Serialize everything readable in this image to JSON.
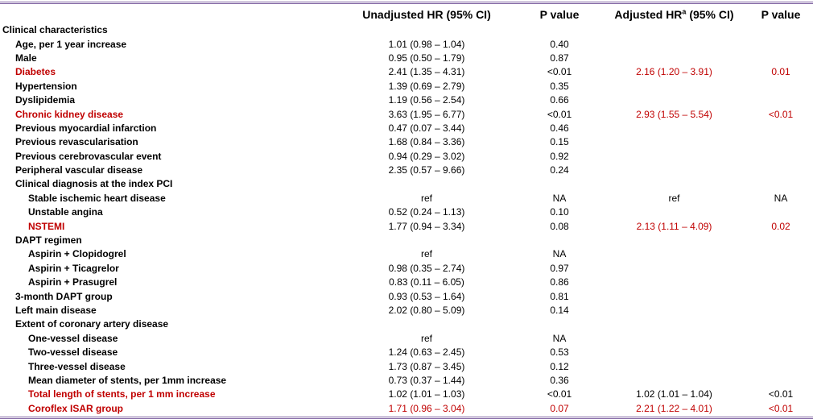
{
  "header": {
    "col1": "Unadjusted HR (95% CI)",
    "col2": "P value",
    "col3_pre": "Adjusted HR",
    "col3_sup": "a",
    "col3_post": " (95% CI)",
    "col4": "P value"
  },
  "rows": [
    {
      "label": "Clinical characteristics",
      "level": 0,
      "sig": false,
      "uhr": "",
      "up": "",
      "ahr": "",
      "ap": ""
    },
    {
      "label": "Age, per 1 year increase",
      "level": 1,
      "sig": false,
      "uhr": "1.01 (0.98 – 1.04)",
      "up": "0.40",
      "ahr": "",
      "ap": ""
    },
    {
      "label": "Male",
      "level": 1,
      "sig": false,
      "uhr": "0.95 (0.50 – 1.79)",
      "up": "0.87",
      "ahr": "",
      "ap": ""
    },
    {
      "label": "Diabetes",
      "level": 1,
      "sig": true,
      "uhr": "2.41 (1.35 – 4.31)",
      "up": "<0.01",
      "ahr": "2.16 (1.20 – 3.91)",
      "ap": "0.01"
    },
    {
      "label": "Hypertension",
      "level": 1,
      "sig": false,
      "uhr": "1.39 (0.69 – 2.79)",
      "up": "0.35",
      "ahr": "",
      "ap": ""
    },
    {
      "label": "Dyslipidemia",
      "level": 1,
      "sig": false,
      "uhr": "1.19 (0.56 – 2.54)",
      "up": "0.66",
      "ahr": "",
      "ap": ""
    },
    {
      "label": "Chronic kidney disease",
      "level": 1,
      "sig": true,
      "uhr": "3.63 (1.95 – 6.77)",
      "up": "<0.01",
      "ahr": "2.93 (1.55 – 5.54)",
      "ap": "<0.01"
    },
    {
      "label": "Previous myocardial infarction",
      "level": 1,
      "sig": false,
      "uhr": "0.47 (0.07 – 3.44)",
      "up": "0.46",
      "ahr": "",
      "ap": ""
    },
    {
      "label": "Previous revascularisation",
      "level": 1,
      "sig": false,
      "uhr": "1.68 (0.84 – 3.36)",
      "up": "0.15",
      "ahr": "",
      "ap": ""
    },
    {
      "label": "Previous cerebrovascular event",
      "level": 1,
      "sig": false,
      "uhr": "0.94 (0.29 – 3.02)",
      "up": "0.92",
      "ahr": "",
      "ap": ""
    },
    {
      "label": "Peripheral vascular disease",
      "level": 1,
      "sig": false,
      "uhr": "2.35 (0.57 – 9.66)",
      "up": "0.24",
      "ahr": "",
      "ap": ""
    },
    {
      "label": "Clinical diagnosis at the index PCI",
      "level": 1,
      "sig": false,
      "uhr": "",
      "up": "",
      "ahr": "",
      "ap": ""
    },
    {
      "label": "Stable ischemic heart disease",
      "level": 2,
      "sig": false,
      "uhr": "ref",
      "up": "NA",
      "ahr": "ref",
      "ap": "NA"
    },
    {
      "label": "Unstable angina",
      "level": 2,
      "sig": false,
      "uhr": "0.52 (0.24 – 1.13)",
      "up": "0.10",
      "ahr": "",
      "ap": ""
    },
    {
      "label": "NSTEMI",
      "level": 2,
      "sig": true,
      "uhr": "1.77 (0.94 – 3.34)",
      "up": "0.08",
      "ahr": "2.13 (1.11 – 4.09)",
      "ap": "0.02"
    },
    {
      "label": "DAPT regimen",
      "level": 1,
      "sig": false,
      "uhr": "",
      "up": "",
      "ahr": "",
      "ap": ""
    },
    {
      "label": "Aspirin + Clopidogrel",
      "level": 2,
      "sig": false,
      "uhr": "ref",
      "up": "NA",
      "ahr": "",
      "ap": ""
    },
    {
      "label": "Aspirin + Ticagrelor",
      "level": 2,
      "sig": false,
      "uhr": "0.98 (0.35 – 2.74)",
      "up": "0.97",
      "ahr": "",
      "ap": ""
    },
    {
      "label": "Aspirin + Prasugrel",
      "level": 2,
      "sig": false,
      "uhr": "0.83 (0.11 – 6.05)",
      "up": "0.86",
      "ahr": "",
      "ap": ""
    },
    {
      "label": "3-month DAPT group",
      "level": 1,
      "sig": false,
      "uhr": "0.93 (0.53 – 1.64)",
      "up": "0.81",
      "ahr": "",
      "ap": ""
    },
    {
      "label": "Left main disease",
      "level": 1,
      "sig": false,
      "uhr": "2.02 (0.80 – 5.09)",
      "up": "0.14",
      "ahr": "",
      "ap": ""
    },
    {
      "label": "Extent of coronary artery disease",
      "level": 1,
      "sig": false,
      "uhr": "",
      "up": "",
      "ahr": "",
      "ap": ""
    },
    {
      "label": "One-vessel disease",
      "level": 2,
      "sig": false,
      "uhr": "ref",
      "up": "NA",
      "ahr": "",
      "ap": ""
    },
    {
      "label": "Two-vessel disease",
      "level": 2,
      "sig": false,
      "uhr": "1.24 (0.63 – 2.45)",
      "up": "0.53",
      "ahr": "",
      "ap": ""
    },
    {
      "label": "Three-vessel disease",
      "level": 2,
      "sig": false,
      "uhr": "1.73 (0.87 – 3.45)",
      "up": "0.12",
      "ahr": "",
      "ap": ""
    },
    {
      "label": "Mean diameter of stents, per 1mm increase",
      "level": 2,
      "sig": false,
      "uhr": "0.73 (0.37 – 1.44)",
      "up": "0.36",
      "ahr": "",
      "ap": ""
    },
    {
      "label": "Total length of stents, per 1 mm increase",
      "level": 2,
      "sig": true,
      "uhr": "1.02 (1.01 – 1.03)",
      "up": "<0.01",
      "ahr": "1.02 (1.01 – 1.04)",
      "ap": "<0.01",
      "ared": false
    },
    {
      "label": "Coroflex ISAR group",
      "level": 2,
      "sig": true,
      "uhr": "1.71 (0.96 – 3.04)",
      "up": "0.07",
      "ahr": "2.21 (1.22 – 4.01)",
      "ap": "<0.01",
      "ured": true
    }
  ]
}
